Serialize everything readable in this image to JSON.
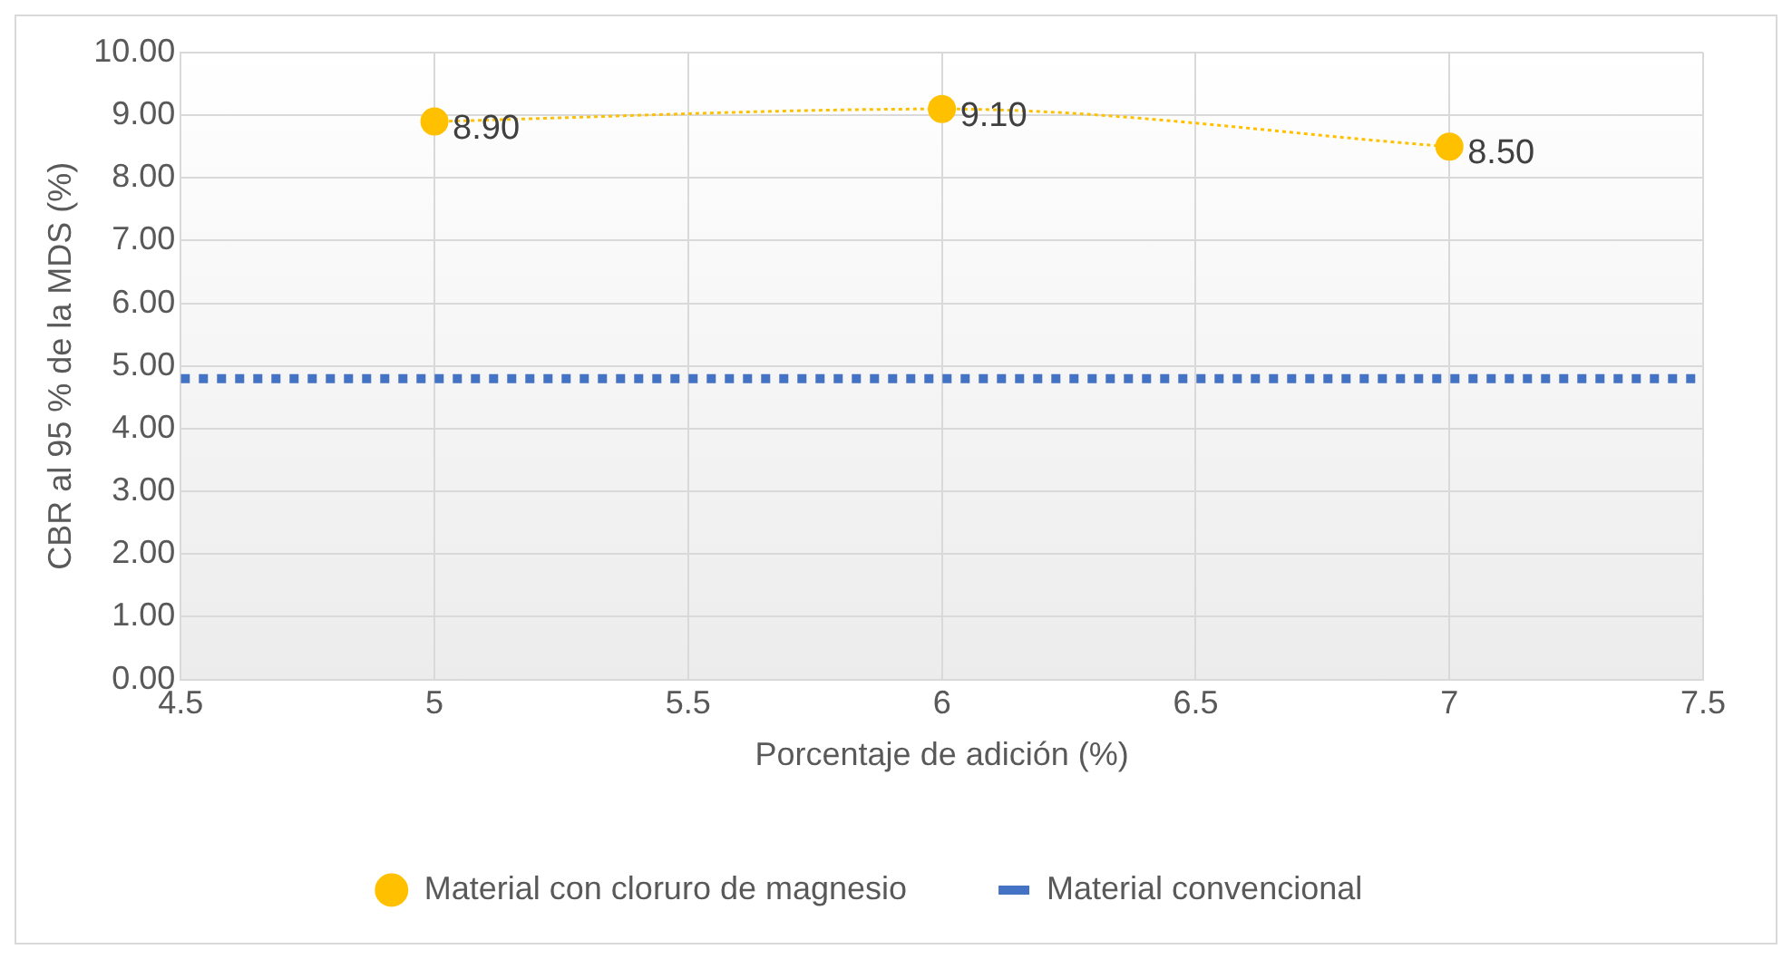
{
  "chart_data": {
    "type": "line",
    "xlabel": "Porcentaje de adición (%)",
    "ylabel": "CBR al 95 % de la MDS (%)",
    "xlim": [
      4.5,
      7.5
    ],
    "xticks": [
      4.5,
      5,
      5.5,
      6,
      6.5,
      7,
      7.5
    ],
    "ylim": [
      0,
      10
    ],
    "yticks": [
      {
        "value": 0,
        "label": "0.00"
      },
      {
        "value": 1,
        "label": "1.00"
      },
      {
        "value": 2,
        "label": "2.00"
      },
      {
        "value": 3,
        "label": "3.00"
      },
      {
        "value": 4,
        "label": "4.00"
      },
      {
        "value": 5,
        "label": "5.00"
      },
      {
        "value": 6,
        "label": "6.00"
      },
      {
        "value": 7,
        "label": "7.00"
      },
      {
        "value": 8,
        "label": "8.00"
      },
      {
        "value": 9,
        "label": "9.00"
      },
      {
        "value": 10,
        "label": "10.00"
      }
    ],
    "grid": true,
    "legend": "bottom",
    "series": [
      {
        "name": "Material con cloruro de magnesio",
        "color": "#ffc000",
        "x": [
          5,
          6,
          7
        ],
        "values": [
          8.9,
          9.1,
          8.5
        ],
        "value_labels": [
          "8.90",
          "9.10",
          "8.50"
        ],
        "marker": "circle",
        "line_style": "dotted"
      },
      {
        "name": "Material convencional",
        "color": "#4472c4",
        "x": [
          4.5,
          7.5
        ],
        "values": [
          4.8,
          4.8
        ],
        "marker": "none",
        "line_style": "dotted"
      }
    ]
  }
}
